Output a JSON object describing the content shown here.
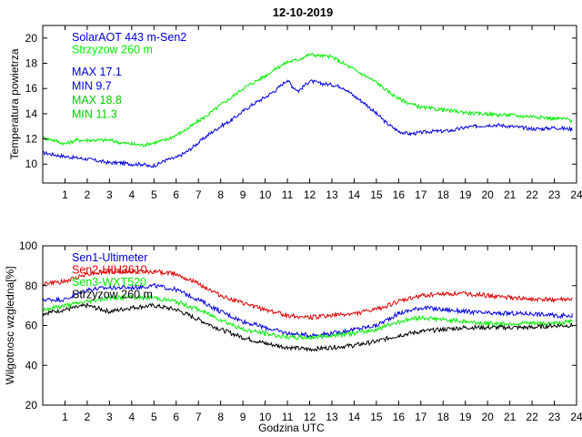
{
  "figure": {
    "title": "12-10-2019"
  },
  "chart_data": [
    {
      "type": "line",
      "title": "12-10-2019",
      "xlabel": "",
      "ylabel": "Temperatura powietrza",
      "xlim": [
        0,
        24
      ],
      "ylim": [
        8.5,
        21
      ],
      "xticks": [
        1,
        2,
        3,
        4,
        5,
        6,
        7,
        8,
        9,
        10,
        11,
        12,
        13,
        14,
        15,
        16,
        17,
        18,
        19,
        20,
        21,
        22,
        23,
        24
      ],
      "yticks": [
        10,
        12,
        14,
        16,
        18,
        20
      ],
      "grid": false,
      "legend_position": "top-left",
      "annotations": [
        {
          "text": "MAX 17.1",
          "color": "#0000dd"
        },
        {
          "text": "MIN 9.7",
          "color": "#0000dd"
        },
        {
          "text": "MAX 18.8",
          "color": "#00cc00"
        },
        {
          "text": "MIN 11.3",
          "color": "#00cc00"
        }
      ],
      "series": [
        {
          "name": "SolarAOT 443 m-Sen2",
          "color": "#0000dd",
          "x": [
            0,
            1,
            2,
            3,
            3.5,
            4,
            4.5,
            4.8,
            5.2,
            5.5,
            6,
            6.5,
            7,
            7.5,
            8,
            8.5,
            9,
            9.5,
            10,
            10.5,
            11,
            11.2,
            11.5,
            12,
            12.5,
            13,
            13.5,
            14,
            14.5,
            15,
            15.5,
            16,
            16.5,
            17,
            17.5,
            18,
            18.5,
            19,
            19.5,
            20,
            20.5,
            21,
            21.5,
            22,
            22.5,
            23,
            23.5,
            23.8
          ],
          "y": [
            10.9,
            10.6,
            10.4,
            10.1,
            10.1,
            10.0,
            10.0,
            9.8,
            10.0,
            10.3,
            10.5,
            11.0,
            11.7,
            12.4,
            13.0,
            13.5,
            14.2,
            14.8,
            15.3,
            15.9,
            16.7,
            16.2,
            15.8,
            16.6,
            16.4,
            16.3,
            16.1,
            15.4,
            14.8,
            14.0,
            13.2,
            12.6,
            12.4,
            12.5,
            12.6,
            12.6,
            12.7,
            12.9,
            13.0,
            13.1,
            13.1,
            13.0,
            12.9,
            12.8,
            12.8,
            12.9,
            12.8,
            12.8
          ]
        },
        {
          "name": "Strzyzow 260 m",
          "color": "#00ee00",
          "x": [
            0,
            0.5,
            1,
            1.5,
            2,
            3,
            3.5,
            4,
            4.5,
            5,
            5.5,
            6,
            6.5,
            7,
            7.5,
            8,
            8.5,
            9,
            9.5,
            10,
            10.5,
            11,
            11.5,
            12,
            12.5,
            13,
            13.5,
            14,
            14.5,
            15,
            15.5,
            16,
            16.5,
            17,
            17.5,
            18,
            18.5,
            19,
            19.5,
            20,
            20.5,
            21,
            21.5,
            22,
            22.5,
            23,
            23.5,
            23.8
          ],
          "y": [
            12.1,
            11.9,
            11.6,
            11.9,
            11.9,
            11.9,
            11.7,
            11.6,
            11.5,
            11.7,
            11.9,
            12.3,
            12.8,
            13.4,
            14.0,
            14.7,
            15.3,
            16.0,
            16.5,
            17.0,
            17.6,
            18.1,
            18.3,
            18.7,
            18.6,
            18.5,
            18.0,
            17.5,
            17.0,
            16.5,
            15.8,
            15.2,
            14.8,
            14.5,
            14.4,
            14.3,
            14.2,
            14.1,
            14.0,
            14.0,
            13.9,
            13.9,
            13.8,
            13.8,
            13.7,
            13.6,
            13.6,
            13.4
          ]
        }
      ]
    },
    {
      "type": "line",
      "title": "",
      "xlabel": "Godzina UTC",
      "ylabel": "Wilgotnosc wzgledna[%]",
      "xlim": [
        0,
        24
      ],
      "ylim": [
        20,
        100
      ],
      "xticks": [
        1,
        2,
        3,
        4,
        5,
        6,
        7,
        8,
        9,
        10,
        11,
        12,
        13,
        14,
        15,
        16,
        17,
        18,
        19,
        20,
        21,
        22,
        23,
        24
      ],
      "yticks": [
        20,
        40,
        60,
        80,
        100
      ],
      "grid": false,
      "legend_position": "top-left",
      "series": [
        {
          "name": "Sen1-Ultimeter",
          "color": "#0000dd",
          "x": [
            0,
            1,
            2,
            3,
            4,
            5,
            6,
            7,
            8,
            9,
            10,
            11,
            12,
            13,
            14,
            15,
            16,
            17,
            18,
            19,
            20,
            21,
            22,
            23,
            23.8
          ],
          "y": [
            73,
            73,
            78,
            79,
            79,
            80,
            78,
            73,
            67,
            62,
            59,
            56,
            55,
            56,
            58,
            60,
            66,
            69,
            68,
            67,
            66,
            66,
            66,
            65,
            65
          ]
        },
        {
          "name": "Sen2-HIH3610",
          "color": "#dd0000",
          "x": [
            0,
            1,
            2,
            3,
            4,
            5,
            6,
            7,
            8,
            9,
            10,
            11,
            12,
            13,
            14,
            15,
            16,
            17,
            18,
            19,
            20,
            21,
            22,
            23,
            23.8
          ],
          "y": [
            81,
            82,
            86,
            87,
            87,
            87,
            86,
            81,
            75,
            71,
            68,
            65,
            64,
            65,
            66,
            68,
            72,
            75,
            76,
            76,
            75,
            74,
            73,
            73,
            73
          ]
        },
        {
          "name": "Sen3-WXT520",
          "color": "#00ee00",
          "x": [
            0,
            1,
            2,
            3,
            4,
            5,
            6,
            7,
            8,
            9,
            10,
            11,
            12,
            13,
            14,
            15,
            16,
            17,
            18,
            19,
            20,
            21,
            22,
            23,
            23.8
          ],
          "y": [
            68,
            70,
            72,
            74,
            74,
            74,
            72,
            68,
            63,
            58,
            56,
            54,
            54,
            55,
            56,
            58,
            62,
            64,
            63,
            62,
            61,
            61,
            61,
            61,
            62
          ]
        },
        {
          "name": "Strzyzow 260 m",
          "color": "#000000",
          "x": [
            0,
            1,
            2,
            3,
            4,
            5,
            6,
            7,
            8,
            9,
            10,
            11,
            12,
            13,
            14,
            15,
            16,
            17,
            18,
            19,
            20,
            21,
            22,
            23,
            23.8
          ],
          "y": [
            66,
            68,
            70,
            67,
            69,
            70,
            68,
            63,
            58,
            54,
            51,
            49,
            48,
            49,
            50,
            52,
            55,
            57,
            58,
            59,
            59,
            59,
            59,
            60,
            60
          ]
        }
      ]
    }
  ]
}
